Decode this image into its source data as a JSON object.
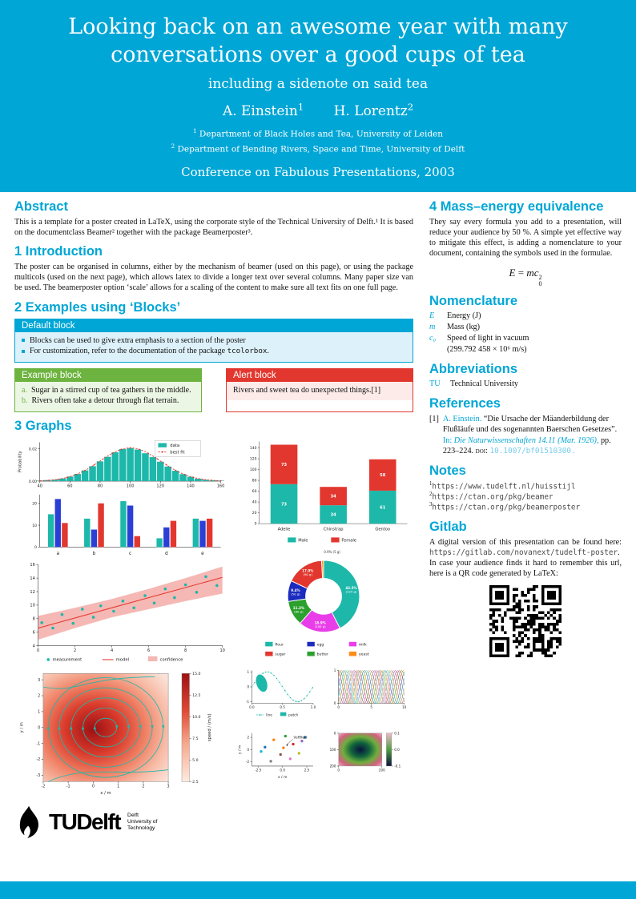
{
  "colors": {
    "accent": "#00A6D6",
    "accent_light": "#ddf1fa",
    "green": "#6db33f",
    "green_light": "#ecf6e4",
    "red": "#e2372e",
    "red_light": "#fcebe9",
    "teal": "#1db8aa",
    "blue": "#2b3fd6",
    "dark_blue": "#1c2bbf",
    "chart_green": "#2ca02c",
    "magenta": "#e93de9",
    "orange": "#ff8d1a",
    "band": "#f5b8b4",
    "cycle": [
      "#1f77b4",
      "#ff7f0e",
      "#2ca02c",
      "#d62728",
      "#9467bd",
      "#8c564b",
      "#e377c2",
      "#7f7f7f",
      "#bcbd22",
      "#17becf"
    ]
  },
  "header": {
    "title": "Looking back on an awesome year with many conversations over a good cups of tea",
    "subtitle": "including a sidenote on said tea",
    "authors": [
      {
        "name": "A. Einstein",
        "sup": "1"
      },
      {
        "name": "H. Lorentz",
        "sup": "2"
      }
    ],
    "affiliations": [
      {
        "sup": "1",
        "text": "Department of Black Holes and Tea, University of Leiden"
      },
      {
        "sup": "2",
        "text": "Department of Bending Rivers, Space and Time, University of Delft"
      }
    ],
    "conference": "Conference on Fabulous Presentations, 2003"
  },
  "sections": {
    "abstract": {
      "heading": "Abstract",
      "text": "This is a template for a poster created in LaTeX, using the corporate style of the Technical University of Delft.¹ It is based on the documentclass Beamer² together with the package Beamerposter³."
    },
    "introduction": {
      "heading": "1 Introduction",
      "text": "The poster can be organised in columns, either by the mechanism of beamer (used on this page), or using the package multicols (used on the next page), which allows latex to divide a longer text over several columns. Many paper size van be used. The beamerposter option ‘scale’ allows for a scaling of the content to make sure all text fits on one full page."
    },
    "examples": {
      "heading": "2 Examples using ‘Blocks’"
    },
    "graphs": {
      "heading": "3 Graphs"
    },
    "mass": {
      "heading": "4 Mass–energy equivalence",
      "text": "They say every formula you add to a presentation, will reduce your audience by 50 %. A simple yet effective way to mitigate this effect, is adding a nomenclature to your document, containing the symbols used in the formulae.",
      "formula": {
        "lhs": "E",
        "eq": "=",
        "base": "mc",
        "sup": "2",
        "sub": "0"
      }
    },
    "nomenclature": {
      "heading": "Nomenclature",
      "items": [
        {
          "sym": "E",
          "desc": "Energy (J)",
          "desc2": ""
        },
        {
          "sym": "m",
          "desc": "Mass (kg)",
          "desc2": ""
        },
        {
          "sym": "c₀",
          "desc": "Speed of light in vacuum",
          "desc2": "(299.792 458 × 10⁶ m/s)"
        }
      ]
    },
    "abbreviations": {
      "heading": "Abbreviations",
      "items": [
        {
          "abbr": "TU",
          "desc": "Technical University"
        }
      ]
    },
    "references": {
      "heading": "References",
      "entry": {
        "label": "[1]",
        "author": "A. Einstein.",
        "title": "“Die Ursache der Mäanderbildung der Flußläufe und des sogenannten Baerschen Gesetzes”.",
        "in_label": "In:",
        "journal": "Die Naturwissenschaften 14.11 (Mar. 1926),",
        "pages": "pp. 223–224.",
        "doi_label": "doi:",
        "doi": "10.1007/bf01510300."
      }
    },
    "notes": {
      "heading": "Notes",
      "items": [
        {
          "sup": "1",
          "url": "https://www.tudelft.nl/huisstijl"
        },
        {
          "sup": "2",
          "url": "https://ctan.org/pkg/beamer"
        },
        {
          "sup": "3",
          "url": "https://ctan.org/pkg/beamerposter"
        }
      ]
    },
    "gitlab": {
      "heading": "Gitlab",
      "pre": "A digital version of this presentation can be found here: ",
      "url": "https://gitlab.com/novanext/tudelft-poster",
      "post": ". In case your audience finds it hard to remember this url, here is a QR code generated by LaTeX:"
    }
  },
  "blocks": {
    "default": {
      "title": "Default block",
      "item1": "Blocks can be used to give extra emphasis to a section of the poster",
      "item2_pre": "For customization, refer to the documentation of the package ",
      "item2_code": "tcolorbox",
      "item2_post": "."
    },
    "example": {
      "title": "Example block",
      "items": [
        {
          "label": "a.",
          "text": "Sugar in a stirred cup of tea gathers in the middle."
        },
        {
          "label": "b.",
          "text": "Rivers often take a detour through flat terrain."
        }
      ]
    },
    "alert": {
      "title": "Alert block",
      "text": "Rivers and sweet tea do unexpected things.[1]"
    }
  },
  "logo": {
    "brand": "TUDelft",
    "caption": [
      "Delft",
      "University of",
      "Technology"
    ]
  },
  "chart_data": [
    {
      "id": "histogram",
      "type": "bar",
      "ylabel": "Probability",
      "yticks": [
        "0.00",
        "0.02"
      ],
      "xticks": [
        40,
        60,
        80,
        100,
        120,
        140,
        160
      ],
      "ymax": 0.024,
      "bin_centers": [
        40,
        45,
        50,
        55,
        60,
        65,
        70,
        75,
        80,
        85,
        90,
        95,
        100,
        105,
        110,
        115,
        120,
        125,
        130,
        135,
        140,
        145,
        150,
        155,
        160
      ],
      "values": [
        0.0003,
        0.0006,
        0.0009,
        0.0016,
        0.0028,
        0.0044,
        0.0066,
        0.0092,
        0.0122,
        0.015,
        0.0178,
        0.0198,
        0.0204,
        0.0195,
        0.0172,
        0.0148,
        0.012,
        0.009,
        0.0064,
        0.0043,
        0.0027,
        0.0015,
        0.0008,
        0.0005,
        0.0003
      ],
      "fit": {
        "mean": 100,
        "sd": 20,
        "peak": 0.0205
      },
      "legend": [
        "data",
        "best fit"
      ]
    },
    {
      "id": "grouped_bar",
      "type": "bar",
      "categories": [
        "a",
        "b",
        "c",
        "d",
        "e"
      ],
      "series": [
        {
          "name": "series1",
          "color": "teal",
          "values": [
            15,
            13,
            21,
            4,
            13
          ]
        },
        {
          "name": "series2",
          "color": "blue",
          "values": [
            22,
            8,
            19,
            9,
            12
          ]
        },
        {
          "name": "series3",
          "color": "red",
          "values": [
            11,
            20,
            5,
            12,
            13
          ]
        }
      ],
      "yticks": [
        0,
        10,
        20
      ],
      "ymax": 24
    },
    {
      "id": "stacked_bar",
      "type": "bar",
      "categories": [
        "Adelie",
        "Chinstrap",
        "Gentoo"
      ],
      "series": [
        {
          "name": "Male",
          "color": "teal",
          "values": [
            73,
            34,
            61
          ]
        },
        {
          "name": "Female",
          "color": "red",
          "values": [
            73,
            34,
            58
          ]
        }
      ],
      "yticks": [
        0,
        20,
        40,
        60,
        80,
        100,
        120,
        140
      ],
      "ymax": 152
    },
    {
      "id": "regression",
      "type": "scatter",
      "legend": [
        "measurement",
        "model",
        "confidence"
      ],
      "points": [
        [
          0.2,
          7.4
        ],
        [
          0.8,
          6.6
        ],
        [
          1.3,
          8.6
        ],
        [
          1.9,
          7.3
        ],
        [
          2.4,
          9.4
        ],
        [
          3.0,
          8.2
        ],
        [
          3.4,
          9.9
        ],
        [
          4.1,
          9.1
        ],
        [
          4.6,
          10.6
        ],
        [
          5.2,
          9.6
        ],
        [
          5.8,
          11.4
        ],
        [
          6.3,
          10.3
        ],
        [
          6.9,
          12.4
        ],
        [
          7.4,
          11.1
        ],
        [
          8.0,
          13.0
        ],
        [
          8.6,
          11.9
        ],
        [
          9.1,
          14.2
        ],
        [
          9.7,
          12.9
        ]
      ],
      "model": {
        "x": [
          0,
          10
        ],
        "y": [
          6.6,
          14.1
        ]
      },
      "band": {
        "x": [
          0,
          2,
          4,
          6,
          8,
          10
        ],
        "upper": [
          8.4,
          9.6,
          10.9,
          12.4,
          14.0,
          15.7
        ],
        "lower": [
          4.9,
          6.6,
          8.2,
          9.4,
          10.6,
          11.7
        ]
      },
      "xticks": [
        0,
        2,
        4,
        6,
        8,
        10
      ],
      "yticks": [
        4,
        6,
        8,
        10,
        12,
        14,
        16
      ],
      "xlim": [
        0,
        10
      ],
      "ylim": [
        4,
        16
      ]
    },
    {
      "id": "donut",
      "type": "pie",
      "slices": [
        {
          "label": "flour",
          "pct": 42.5,
          "grams": "225 g",
          "color": "teal"
        },
        {
          "label": "milk",
          "pct": 18.9,
          "grams": "100 g",
          "color": "magenta"
        },
        {
          "label": "butter",
          "pct": 11.3,
          "grams": "60 g",
          "color": "chart_green"
        },
        {
          "label": "egg",
          "pct": 9.4,
          "grams": "50 g",
          "color": "dark_blue"
        },
        {
          "label": "sugar",
          "pct": 17.0,
          "grams": "90 g",
          "color": "red"
        },
        {
          "label": "yeast",
          "pct": 0.9,
          "grams": "5 g",
          "color": "orange"
        }
      ],
      "legend_rows": [
        [
          "flour",
          "egg",
          "milk"
        ],
        [
          "sugar",
          "butter",
          "yeast"
        ]
      ]
    },
    {
      "id": "stream",
      "type": "heatmap",
      "xlabel": "x / m",
      "ylabel": "y / m",
      "xticks": [
        -2,
        -1,
        0,
        1,
        2,
        3
      ],
      "yticks": [
        3,
        2,
        1,
        0,
        -1,
        -2,
        -3
      ],
      "colorbar": {
        "label": "speed / (m/s)",
        "ticks": [
          2.5,
          5.0,
          7.5,
          10.0,
          12.5,
          15.0
        ]
      }
    },
    {
      "id": "multiples",
      "type": "line",
      "sine": {
        "legend": [
          "line",
          "patch"
        ],
        "xticks": [
          "0.0",
          "0.5",
          "1.0"
        ],
        "yticks": [
          1,
          0,
          -1
        ]
      },
      "lines": {
        "xticks": [
          0,
          5,
          10
        ],
        "yticks": [
          0,
          1
        ],
        "n": 10
      },
      "scatter": {
        "xlabel": "x / m",
        "ylabel": "y / m",
        "xticks": [
          "-2.5",
          "0.0",
          "2.5"
        ],
        "yticks": [
          2,
          0,
          -2
        ],
        "annotation": "\\leftfield",
        "points": [
          [
            -1.8,
            0.4
          ],
          [
            -0.9,
            1.6
          ],
          [
            0.3,
            2.2
          ],
          [
            1.1,
            0.9
          ],
          [
            2.0,
            1.4
          ],
          [
            -0.2,
            -0.8
          ],
          [
            0.8,
            -1.5
          ],
          [
            -1.2,
            -1.9
          ],
          [
            1.7,
            -0.6
          ],
          [
            -2.2,
            -0.3
          ],
          [
            2.3,
            2.0
          ],
          [
            0.1,
            0.3
          ]
        ]
      },
      "image": {
        "colorbar_ticks": [
          "0.1",
          "0.0",
          "-0.1"
        ],
        "xticks": [
          0,
          200
        ],
        "yticks": [
          0,
          100,
          200
        ]
      }
    }
  ]
}
